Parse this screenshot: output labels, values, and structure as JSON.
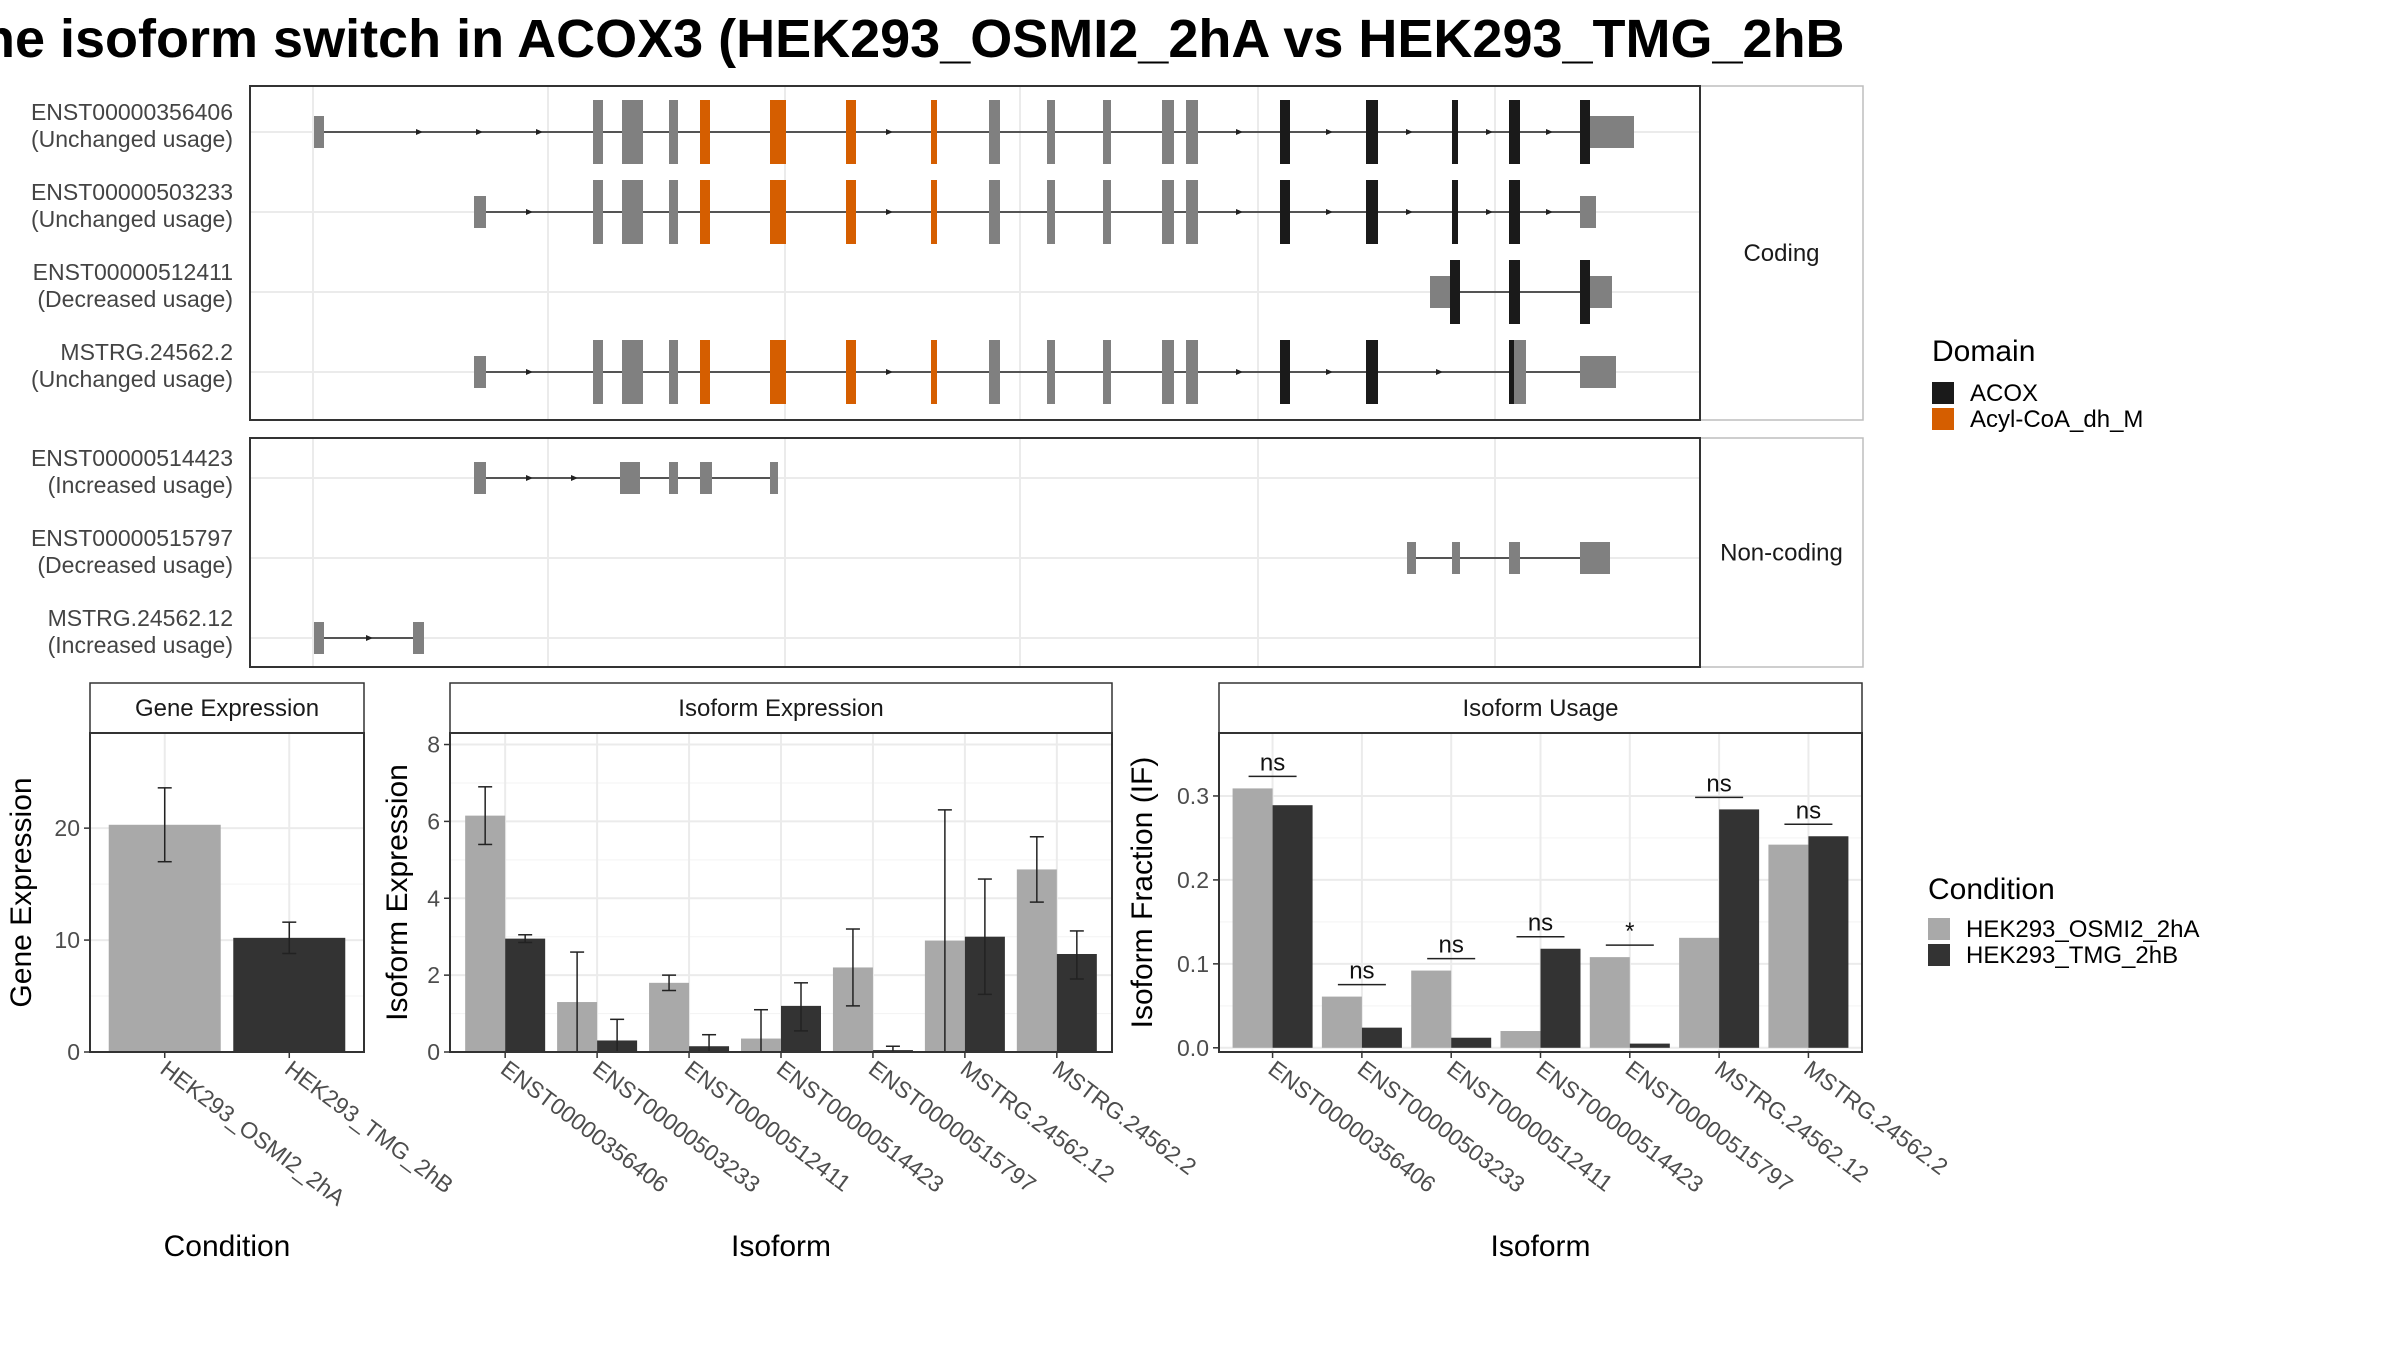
{
  "title": "he isoform switch in ACOX3 (HEK293_OSMI2_2hA vs HEK293_TMG_2hB",
  "chart_data": [
    {
      "type": "gene-structure",
      "panels": [
        {
          "label": "Coding",
          "isoforms": [
            {
              "id": "ENST00000356406",
              "usage": "(Unchanged usage)"
            },
            {
              "id": "ENST00000503233",
              "usage": "(Unchanged usage)"
            },
            {
              "id": "ENST00000512411",
              "usage": "(Decreased usage)"
            },
            {
              "id": "MSTRG.24562.2",
              "usage": "(Unchanged usage)"
            }
          ]
        },
        {
          "label": "Non-coding",
          "isoforms": [
            {
              "id": "ENST00000514423",
              "usage": "(Increased usage)"
            },
            {
              "id": "ENST00000515797",
              "usage": "(Decreased usage)"
            },
            {
              "id": "MSTRG.24562.12",
              "usage": "(Increased usage)"
            }
          ]
        }
      ],
      "legend": {
        "title": "Domain",
        "placement": "right",
        "items": [
          {
            "name": "ACOX",
            "color": "#1a1a1a"
          },
          {
            "name": "Acyl-CoA_dh_M",
            "color": "#d55e00"
          }
        ]
      }
    },
    {
      "type": "bar",
      "panel_title": "Gene Expression",
      "xlabel": "Condition",
      "ylabel": "Gene Expression",
      "categories": [
        "HEK293_OSMI2_2hA",
        "HEK293_TMG_2hB"
      ],
      "values": [
        20.3,
        10.2
      ],
      "error_low": [
        17.0,
        8.8
      ],
      "error_high": [
        23.6,
        11.6
      ],
      "ylim": [
        0,
        28.5
      ],
      "yticks": [
        0,
        10,
        20
      ],
      "colors": [
        "#a9a9a9",
        "#333333"
      ]
    },
    {
      "type": "bar",
      "panel_title": "Isoform Expression",
      "xlabel": "Isoform",
      "ylabel": "Isoform Expression",
      "categories": [
        "ENST00000356406",
        "ENST00000503233",
        "ENST00000512411",
        "ENST00000514423",
        "ENST00000515797",
        "MSTRG.24562.12",
        "MSTRG.24562.2"
      ],
      "series": [
        {
          "name": "HEK293_OSMI2_2hA",
          "values": [
            6.15,
            1.3,
            1.8,
            0.35,
            2.2,
            2.9,
            4.75
          ],
          "error_low": [
            5.4,
            0.0,
            1.6,
            0.0,
            1.2,
            0.0,
            3.9
          ],
          "error_high": [
            6.9,
            2.6,
            2.0,
            1.1,
            3.2,
            6.3,
            5.6
          ]
        },
        {
          "name": "HEK293_TMG_2hB",
          "values": [
            2.95,
            0.3,
            0.15,
            1.2,
            0.05,
            3.0,
            2.55
          ],
          "error_low": [
            2.85,
            0.0,
            0.0,
            0.55,
            0.0,
            1.5,
            1.9
          ],
          "error_high": [
            3.05,
            0.85,
            0.45,
            1.8,
            0.15,
            4.5,
            3.15
          ]
        }
      ],
      "ylim": [
        0,
        8.3
      ],
      "yticks": [
        0,
        2,
        4,
        6,
        8
      ],
      "colors": [
        "#a9a9a9",
        "#333333"
      ]
    },
    {
      "type": "bar",
      "panel_title": "Isoform Usage",
      "xlabel": "Isoform",
      "ylabel": "Isoform Fraction (IF)",
      "categories": [
        "ENST00000356406",
        "ENST00000503233",
        "ENST00000512411",
        "ENST00000514423",
        "ENST00000515797",
        "MSTRG.24562.12",
        "MSTRG.24562.2"
      ],
      "series": [
        {
          "name": "HEK293_OSMI2_2hA",
          "values": [
            0.309,
            0.061,
            0.092,
            0.02,
            0.108,
            0.131,
            0.242
          ]
        },
        {
          "name": "HEK293_TMG_2hB",
          "values": [
            0.289,
            0.024,
            0.012,
            0.118,
            0.005,
            0.284,
            0.252
          ]
        }
      ],
      "significance": [
        "ns",
        "ns",
        "ns",
        "ns",
        "*",
        "ns",
        "ns"
      ],
      "ylim": [
        -0.005,
        0.375
      ],
      "yticks": [
        0.0,
        0.1,
        0.2,
        0.3
      ],
      "ytick_labels": [
        "0.0",
        "0.1",
        "0.2",
        "0.3"
      ],
      "colors": [
        "#a9a9a9",
        "#333333"
      ]
    }
  ],
  "condition_legend": {
    "title": "Condition",
    "items": [
      {
        "name": "HEK293_OSMI2_2hA",
        "color": "#a9a9a9"
      },
      {
        "name": "HEK293_TMG_2hB",
        "color": "#333333"
      }
    ]
  }
}
